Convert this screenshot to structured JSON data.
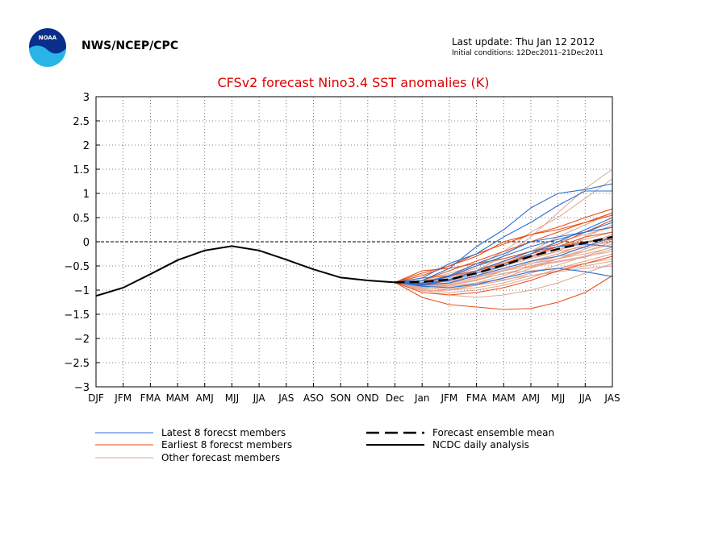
{
  "header": {
    "agency": "NWS/NCEP/CPC",
    "logo_text": "NOAA",
    "last_update": "Last update: Thu Jan 12 2012",
    "initial_conditions": "Initial conditions: 12Dec2011–21Dec2011"
  },
  "colors": {
    "title": "#dd0000",
    "latest": "#2a6fd1",
    "earliest": "#e8501a",
    "other": "#e0a48f",
    "analysis": "#000000",
    "mean": "#000000",
    "grid": "#555555",
    "logo_dark": "#0a2f8a",
    "logo_light": "#29b4e8"
  },
  "legend": {
    "latest": "Latest 8 forecst members",
    "earliest": "Earliest 8 forecst members",
    "other": "Other forecast members",
    "mean": "Forecast ensemble mean",
    "analysis": "NCDC daily analysis"
  },
  "chart_data": {
    "type": "line",
    "title": "CFSv2 forecast Nino3.4 SST anomalies (K)",
    "xlabel": "",
    "ylabel": "",
    "categories": [
      "DJF",
      "JFM",
      "FMA",
      "MAM",
      "AMJ",
      "MJJ",
      "JJA",
      "JAS",
      "ASO",
      "SON",
      "OND",
      "Dec",
      "Jan",
      "JFM",
      "FMA",
      "MAM",
      "AMJ",
      "MJJ",
      "JJA",
      "JAS"
    ],
    "ylim": [
      -3,
      3
    ],
    "yticks": [
      "3",
      "2.5",
      "2",
      "1.5",
      "1",
      "0.5",
      "0",
      "−0.5",
      "−1",
      "−1.5",
      "−2",
      "−2.5",
      "−3"
    ],
    "grid": true,
    "zero_line": true,
    "analysis": [
      -1.12,
      -0.95,
      -0.67,
      -0.38,
      -0.18,
      -0.09,
      -0.18,
      -0.37,
      -0.57,
      -0.74,
      -0.8,
      -0.84
    ],
    "ensemble_mean": [
      -0.84,
      -0.83,
      -0.78,
      -0.65,
      -0.48,
      -0.3,
      -0.15,
      -0.02,
      0.1
    ],
    "latest_members": [
      [
        -0.84,
        -0.8,
        -0.55,
        -0.1,
        0.25,
        0.7,
        1.0,
        1.08,
        1.2
      ],
      [
        -0.84,
        -0.75,
        -0.45,
        -0.25,
        0.1,
        0.4,
        0.75,
        1.05,
        1.05
      ],
      [
        -0.84,
        -0.88,
        -0.8,
        -0.65,
        -0.5,
        -0.25,
        0.0,
        0.25,
        0.5
      ],
      [
        -0.84,
        -0.85,
        -0.7,
        -0.45,
        -0.25,
        0.0,
        0.1,
        0.2,
        0.3
      ],
      [
        -0.84,
        -0.9,
        -0.85,
        -0.7,
        -0.55,
        -0.4,
        -0.3,
        -0.1,
        0.1
      ],
      [
        -0.84,
        -0.88,
        -0.78,
        -0.6,
        -0.4,
        -0.2,
        -0.1,
        -0.05,
        -0.1
      ],
      [
        -0.84,
        -0.92,
        -0.95,
        -0.88,
        -0.75,
        -0.62,
        -0.55,
        -0.62,
        -0.72
      ],
      [
        -0.84,
        -0.86,
        -0.72,
        -0.5,
        -0.3,
        -0.1,
        0.05,
        0.2,
        0.4
      ]
    ],
    "earliest_members": [
      [
        -0.84,
        -1.15,
        -1.3,
        -1.35,
        -1.4,
        -1.38,
        -1.25,
        -1.05,
        -0.7
      ],
      [
        -0.84,
        -0.7,
        -0.5,
        -0.3,
        0.0,
        0.15,
        0.3,
        0.5,
        0.68
      ],
      [
        -0.84,
        -0.8,
        -0.6,
        -0.4,
        -0.2,
        0.0,
        0.2,
        0.4,
        0.6
      ],
      [
        -0.84,
        -0.65,
        -0.5,
        -0.25,
        -0.05,
        0.15,
        0.25,
        0.4,
        0.55
      ],
      [
        -0.84,
        -0.9,
        -0.8,
        -0.6,
        -0.45,
        -0.3,
        -0.1,
        0.1,
        0.2
      ],
      [
        -0.84,
        -0.75,
        -0.7,
        -0.6,
        -0.45,
        -0.25,
        -0.1,
        0.0,
        0.05
      ],
      [
        -0.84,
        -1.05,
        -1.1,
        -1.05,
        -0.95,
        -0.8,
        -0.6,
        -0.45,
        -0.3
      ],
      [
        -0.84,
        -0.6,
        -0.55,
        -0.45,
        -0.35,
        -0.2,
        -0.05,
        0.2,
        0.45
      ]
    ],
    "other_members": [
      [
        -0.84,
        -0.9,
        -0.8,
        -0.6,
        -0.3,
        0.1,
        0.6,
        1.1,
        1.5
      ],
      [
        -0.84,
        -0.85,
        -0.7,
        -0.5,
        -0.2,
        0.2,
        0.5,
        0.9,
        1.3
      ],
      [
        -0.84,
        -0.95,
        -1.0,
        -0.9,
        -0.75,
        -0.55,
        -0.35,
        -0.2,
        0.0
      ],
      [
        -0.84,
        -1.0,
        -1.1,
        -1.15,
        -1.1,
        -1.0,
        -0.85,
        -0.65,
        -0.45
      ],
      [
        -0.84,
        -0.92,
        -0.9,
        -0.8,
        -0.6,
        -0.45,
        -0.3,
        -0.2,
        -0.05
      ],
      [
        -0.84,
        -0.88,
        -0.85,
        -0.7,
        -0.55,
        -0.4,
        -0.25,
        -0.05,
        0.15
      ],
      [
        -0.84,
        -0.8,
        -0.65,
        -0.5,
        -0.35,
        -0.2,
        0.0,
        0.15,
        0.3
      ],
      [
        -0.84,
        -0.98,
        -1.05,
        -1.0,
        -0.9,
        -0.75,
        -0.55,
        -0.4,
        -0.25
      ],
      [
        -0.84,
        -0.9,
        -0.95,
        -0.85,
        -0.7,
        -0.5,
        -0.35,
        -0.15,
        0.05
      ],
      [
        -0.84,
        -0.86,
        -0.75,
        -0.6,
        -0.4,
        -0.25,
        -0.1,
        0.05,
        0.2
      ],
      [
        -0.84,
        -0.95,
        -0.9,
        -0.8,
        -0.65,
        -0.6,
        -0.55,
        -0.45,
        -0.35
      ],
      [
        -0.84,
        -0.9,
        -0.85,
        -0.75,
        -0.6,
        -0.5,
        -0.4,
        -0.3,
        -0.2
      ],
      [
        -0.84,
        -0.82,
        -0.7,
        -0.55,
        -0.45,
        -0.3,
        -0.15,
        0.0,
        0.1
      ],
      [
        -0.84,
        -1.02,
        -1.0,
        -0.95,
        -0.85,
        -0.7,
        -0.6,
        -0.5,
        -0.4
      ],
      [
        -0.84,
        -0.88,
        -0.8,
        -0.7,
        -0.5,
        -0.35,
        -0.2,
        0.1,
        0.35
      ],
      [
        -0.84,
        -0.93,
        -0.92,
        -0.85,
        -0.78,
        -0.7,
        -0.62,
        -0.55,
        -0.5
      ],
      [
        -0.84,
        -0.87,
        -0.78,
        -0.62,
        -0.48,
        -0.32,
        -0.2,
        -0.1,
        0.0
      ],
      [
        -0.84,
        -0.9,
        -0.88,
        -0.78,
        -0.66,
        -0.52,
        -0.42,
        -0.32,
        -0.15
      ],
      [
        -0.84,
        -0.8,
        -0.72,
        -0.6,
        -0.42,
        -0.2,
        0.1,
        0.35,
        0.6
      ],
      [
        -0.84,
        -0.96,
        -0.98,
        -0.9,
        -0.8,
        -0.65,
        -0.48,
        -0.3,
        -0.1
      ],
      [
        -0.84,
        -0.85,
        -0.82,
        -0.72,
        -0.58,
        -0.45,
        -0.35,
        -0.25,
        -0.12
      ],
      [
        -0.84,
        -0.89,
        -0.86,
        -0.74,
        -0.6,
        -0.42,
        -0.25,
        -0.12,
        0.08
      ]
    ]
  }
}
